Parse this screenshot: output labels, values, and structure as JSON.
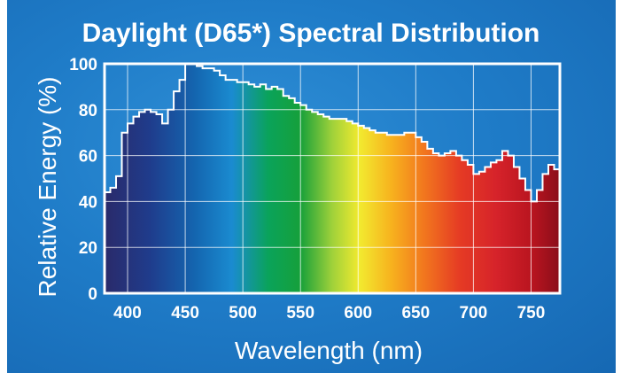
{
  "chart_data": {
    "type": "step-line",
    "title": "Daylight (D65*) Spectral Distribution",
    "xlabel": "Wavelength (nm)",
    "ylabel": "Relative Energy (%)",
    "xlim": [
      380,
      775
    ],
    "ylim": [
      0,
      100
    ],
    "x_ticks": [
      400,
      450,
      500,
      550,
      600,
      650,
      700,
      750
    ],
    "y_ticks": [
      0,
      20,
      40,
      60,
      80,
      100
    ],
    "grid": true,
    "fill": "visible spectrum gradient under curve",
    "series": [
      {
        "x": [
          380,
          385,
          390,
          395,
          400,
          405,
          410,
          415,
          420,
          425,
          430,
          435,
          440,
          445,
          450,
          455,
          460,
          465,
          470,
          475,
          480,
          485,
          490,
          495,
          500,
          505,
          510,
          515,
          520,
          525,
          530,
          535,
          540,
          545,
          550,
          555,
          560,
          565,
          570,
          575,
          580,
          585,
          590,
          595,
          600,
          605,
          610,
          615,
          620,
          625,
          630,
          635,
          640,
          645,
          650,
          655,
          660,
          665,
          670,
          675,
          680,
          685,
          690,
          695,
          700,
          705,
          710,
          715,
          720,
          725,
          730,
          735,
          740,
          745,
          750,
          755,
          760,
          765,
          770
        ],
        "y": [
          44,
          46,
          51,
          70,
          74,
          77,
          79,
          80,
          79,
          78,
          74,
          80,
          88,
          93,
          100,
          100,
          99,
          98,
          98,
          97,
          95,
          93,
          93,
          92,
          92,
          91,
          90,
          91,
          89,
          90,
          89,
          86,
          85,
          83,
          82,
          80,
          79,
          78,
          77,
          76,
          76,
          76,
          75,
          74,
          73,
          72,
          71,
          70,
          70,
          69,
          69,
          69,
          70,
          70,
          68,
          66,
          63,
          61,
          60,
          61,
          62,
          60,
          58,
          56,
          52,
          53,
          55,
          57,
          58,
          62,
          60,
          55,
          50,
          45,
          40,
          45,
          52,
          56,
          54
        ]
      }
    ]
  },
  "colors": {
    "background": "#1f7cc8",
    "grid": "#ffffff",
    "text": "#ffffff",
    "curve": "#ffffff"
  }
}
